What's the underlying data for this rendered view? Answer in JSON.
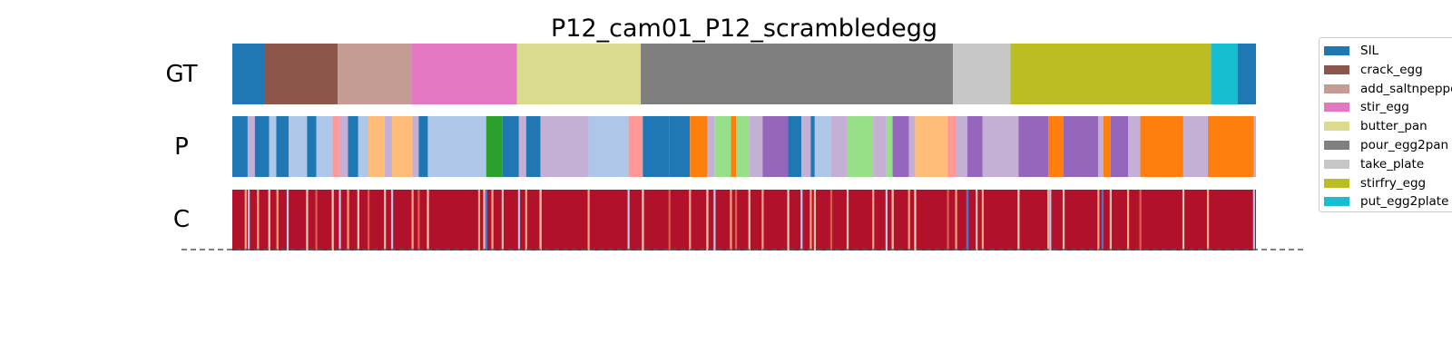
{
  "chart_data": {
    "type": "segmentation",
    "title": "P12_cam01_P12_scrambledegg",
    "rows": [
      "GT",
      "P",
      "C"
    ],
    "x_range": [
      0,
      1
    ],
    "legend": {
      "position": "right",
      "entries": [
        {
          "label": "SIL",
          "color": "#1f77b4"
        },
        {
          "label": "crack_egg",
          "color": "#8c564b"
        },
        {
          "label": "add_saltnpepper",
          "color": "#c49c94"
        },
        {
          "label": "stir_egg",
          "color": "#e377c2"
        },
        {
          "label": "butter_pan",
          "color": "#dbdb8d"
        },
        {
          "label": "pour_egg2pan",
          "color": "#7f7f7f"
        },
        {
          "label": "take_plate",
          "color": "#c7c7c7"
        },
        {
          "label": "stirfry_egg",
          "color": "#bcbd22"
        },
        {
          "label": "put_egg2plate",
          "color": "#17becf"
        }
      ]
    },
    "gt_segments": [
      {
        "start": 0.0,
        "end": 0.031,
        "color": "#1f77b4"
      },
      {
        "start": 0.031,
        "end": 0.103,
        "color": "#8c564b"
      },
      {
        "start": 0.103,
        "end": 0.175,
        "color": "#c49c94"
      },
      {
        "start": 0.175,
        "end": 0.278,
        "color": "#e377c2"
      },
      {
        "start": 0.278,
        "end": 0.399,
        "color": "#dbdb8d"
      },
      {
        "start": 0.399,
        "end": 0.704,
        "color": "#7f7f7f"
      },
      {
        "start": 0.704,
        "end": 0.76,
        "color": "#c7c7c7"
      },
      {
        "start": 0.76,
        "end": 0.956,
        "color": "#bcbd22"
      },
      {
        "start": 0.956,
        "end": 0.982,
        "color": "#17becf"
      },
      {
        "start": 0.982,
        "end": 1.0,
        "color": "#1f77b4"
      }
    ],
    "p_segments": [
      {
        "start": 0.0,
        "end": 0.015,
        "color": "#1f77b4"
      },
      {
        "start": 0.015,
        "end": 0.022,
        "color": "#c5b0d5"
      },
      {
        "start": 0.022,
        "end": 0.036,
        "color": "#1f77b4"
      },
      {
        "start": 0.036,
        "end": 0.043,
        "color": "#aec7e8"
      },
      {
        "start": 0.043,
        "end": 0.055,
        "color": "#1f77b4"
      },
      {
        "start": 0.055,
        "end": 0.073,
        "color": "#aec7e8"
      },
      {
        "start": 0.073,
        "end": 0.082,
        "color": "#1f77b4"
      },
      {
        "start": 0.082,
        "end": 0.098,
        "color": "#aec7e8"
      },
      {
        "start": 0.098,
        "end": 0.105,
        "color": "#ff9896"
      },
      {
        "start": 0.105,
        "end": 0.113,
        "color": "#c5b0d5"
      },
      {
        "start": 0.113,
        "end": 0.123,
        "color": "#1f77b4"
      },
      {
        "start": 0.123,
        "end": 0.133,
        "color": "#aec7e8"
      },
      {
        "start": 0.133,
        "end": 0.149,
        "color": "#ffbb78"
      },
      {
        "start": 0.149,
        "end": 0.156,
        "color": "#c5b0d5"
      },
      {
        "start": 0.156,
        "end": 0.176,
        "color": "#ffbb78"
      },
      {
        "start": 0.176,
        "end": 0.182,
        "color": "#c5b0d5"
      },
      {
        "start": 0.182,
        "end": 0.191,
        "color": "#1f77b4"
      },
      {
        "start": 0.191,
        "end": 0.248,
        "color": "#aec7e8"
      },
      {
        "start": 0.248,
        "end": 0.264,
        "color": "#2ca02c"
      },
      {
        "start": 0.264,
        "end": 0.28,
        "color": "#1f77b4"
      },
      {
        "start": 0.28,
        "end": 0.287,
        "color": "#c5b0d5"
      },
      {
        "start": 0.287,
        "end": 0.301,
        "color": "#1f77b4"
      },
      {
        "start": 0.301,
        "end": 0.348,
        "color": "#c5b0d5"
      },
      {
        "start": 0.348,
        "end": 0.387,
        "color": "#aec7e8"
      },
      {
        "start": 0.387,
        "end": 0.401,
        "color": "#ff9896"
      },
      {
        "start": 0.401,
        "end": 0.427,
        "color": "#1f77b4"
      },
      {
        "start": 0.427,
        "end": 0.447,
        "color": "#1f77b4"
      },
      {
        "start": 0.447,
        "end": 0.464,
        "color": "#ff7f0e"
      },
      {
        "start": 0.464,
        "end": 0.471,
        "color": "#c5b0d5"
      },
      {
        "start": 0.471,
        "end": 0.487,
        "color": "#98df8a"
      },
      {
        "start": 0.487,
        "end": 0.492,
        "color": "#ff7f0e"
      },
      {
        "start": 0.492,
        "end": 0.505,
        "color": "#98df8a"
      },
      {
        "start": 0.505,
        "end": 0.518,
        "color": "#c5b0d5"
      },
      {
        "start": 0.518,
        "end": 0.543,
        "color": "#9467bd"
      },
      {
        "start": 0.543,
        "end": 0.556,
        "color": "#1f77b4"
      },
      {
        "start": 0.556,
        "end": 0.565,
        "color": "#c5b0d5"
      },
      {
        "start": 0.565,
        "end": 0.569,
        "color": "#1f77b4"
      },
      {
        "start": 0.569,
        "end": 0.585,
        "color": "#aec7e8"
      },
      {
        "start": 0.585,
        "end": 0.601,
        "color": "#c5b0d5"
      },
      {
        "start": 0.601,
        "end": 0.626,
        "color": "#98df8a"
      },
      {
        "start": 0.626,
        "end": 0.639,
        "color": "#c5b0d5"
      },
      {
        "start": 0.639,
        "end": 0.645,
        "color": "#98df8a"
      },
      {
        "start": 0.645,
        "end": 0.661,
        "color": "#9467bd"
      },
      {
        "start": 0.661,
        "end": 0.667,
        "color": "#c5b0d5"
      },
      {
        "start": 0.667,
        "end": 0.699,
        "color": "#ffbb78"
      },
      {
        "start": 0.699,
        "end": 0.707,
        "color": "#ff9896"
      },
      {
        "start": 0.707,
        "end": 0.718,
        "color": "#c5b0d5"
      },
      {
        "start": 0.718,
        "end": 0.733,
        "color": "#9467bd"
      },
      {
        "start": 0.733,
        "end": 0.768,
        "color": "#c5b0d5"
      },
      {
        "start": 0.768,
        "end": 0.797,
        "color": "#9467bd"
      },
      {
        "start": 0.797,
        "end": 0.812,
        "color": "#ff7f0e"
      },
      {
        "start": 0.812,
        "end": 0.846,
        "color": "#9467bd"
      },
      {
        "start": 0.846,
        "end": 0.851,
        "color": "#c5b0d5"
      },
      {
        "start": 0.851,
        "end": 0.858,
        "color": "#ff7f0e"
      },
      {
        "start": 0.858,
        "end": 0.875,
        "color": "#9467bd"
      },
      {
        "start": 0.875,
        "end": 0.887,
        "color": "#c5b0d5"
      },
      {
        "start": 0.887,
        "end": 0.929,
        "color": "#ff7f0e"
      },
      {
        "start": 0.929,
        "end": 0.953,
        "color": "#c5b0d5"
      },
      {
        "start": 0.953,
        "end": 0.998,
        "color": "#ff7f0e"
      },
      {
        "start": 0.998,
        "end": 1.0,
        "color": "#c5b0d5"
      }
    ],
    "c_lines": [
      {
        "x": 0.013,
        "color": "#f4a582"
      },
      {
        "x": 0.016,
        "color": "#b2cbe9"
      },
      {
        "x": 0.025,
        "color": "#f4a582"
      },
      {
        "x": 0.036,
        "color": "#f7c9b2"
      },
      {
        "x": 0.044,
        "color": "#f4a582"
      },
      {
        "x": 0.054,
        "color": "#b2cbe9"
      },
      {
        "x": 0.073,
        "color": "#f7c9b2"
      },
      {
        "x": 0.082,
        "color": "#d6604d"
      },
      {
        "x": 0.098,
        "color": "#f7c9b2"
      },
      {
        "x": 0.105,
        "color": "#b2cbe9"
      },
      {
        "x": 0.113,
        "color": "#f4a582"
      },
      {
        "x": 0.123,
        "color": "#f7c9b2"
      },
      {
        "x": 0.133,
        "color": "#d6604d"
      },
      {
        "x": 0.149,
        "color": "#f7c9b2"
      },
      {
        "x": 0.156,
        "color": "#b2cbe9"
      },
      {
        "x": 0.176,
        "color": "#f4a582"
      },
      {
        "x": 0.182,
        "color": "#d6604d"
      },
      {
        "x": 0.191,
        "color": "#f7c9b2"
      },
      {
        "x": 0.241,
        "color": "#f4a582"
      },
      {
        "x": 0.246,
        "color": "#f7c9b2"
      },
      {
        "x": 0.248,
        "color": "#4575d6"
      },
      {
        "x": 0.254,
        "color": "#f4a582"
      },
      {
        "x": 0.264,
        "color": "#f7c9b2"
      },
      {
        "x": 0.28,
        "color": "#b2cbe9"
      },
      {
        "x": 0.287,
        "color": "#f4a582"
      },
      {
        "x": 0.301,
        "color": "#f7c9b2"
      },
      {
        "x": 0.348,
        "color": "#f4a582"
      },
      {
        "x": 0.387,
        "color": "#b2cbe9"
      },
      {
        "x": 0.401,
        "color": "#f7c9b2"
      },
      {
        "x": 0.427,
        "color": "#d6604d"
      },
      {
        "x": 0.447,
        "color": "#f4a582"
      },
      {
        "x": 0.464,
        "color": "#f7c9b2"
      },
      {
        "x": 0.471,
        "color": "#b2cbe9"
      },
      {
        "x": 0.487,
        "color": "#f4a582"
      },
      {
        "x": 0.492,
        "color": "#d6604d"
      },
      {
        "x": 0.505,
        "color": "#f7c9b2"
      },
      {
        "x": 0.518,
        "color": "#f4a582"
      },
      {
        "x": 0.543,
        "color": "#f7c9b2"
      },
      {
        "x": 0.556,
        "color": "#b2cbe9"
      },
      {
        "x": 0.565,
        "color": "#f4a582"
      },
      {
        "x": 0.569,
        "color": "#f7c9b2"
      },
      {
        "x": 0.585,
        "color": "#d6604d"
      },
      {
        "x": 0.601,
        "color": "#f7c9b2"
      },
      {
        "x": 0.626,
        "color": "#f4a582"
      },
      {
        "x": 0.639,
        "color": "#b2cbe9"
      },
      {
        "x": 0.645,
        "color": "#f7c9b2"
      },
      {
        "x": 0.661,
        "color": "#f4a582"
      },
      {
        "x": 0.667,
        "color": "#f7c9b2"
      },
      {
        "x": 0.699,
        "color": "#d6604d"
      },
      {
        "x": 0.707,
        "color": "#f4a582"
      },
      {
        "x": 0.718,
        "color": "#b2cbe9"
      },
      {
        "x": 0.727,
        "color": "#f7c9b2"
      },
      {
        "x": 0.718,
        "color": "#4575d6"
      },
      {
        "x": 0.733,
        "color": "#f4a582"
      },
      {
        "x": 0.768,
        "color": "#f7c9b2"
      },
      {
        "x": 0.797,
        "color": "#f4a582"
      },
      {
        "x": 0.799,
        "color": "#b2cbe9"
      },
      {
        "x": 0.812,
        "color": "#f7c9b2"
      },
      {
        "x": 0.846,
        "color": "#f4a582"
      },
      {
        "x": 0.85,
        "color": "#4575d6"
      },
      {
        "x": 0.858,
        "color": "#f7c9b2"
      },
      {
        "x": 0.875,
        "color": "#f4a582"
      },
      {
        "x": 0.887,
        "color": "#d6604d"
      },
      {
        "x": 0.929,
        "color": "#f7c9b2"
      },
      {
        "x": 0.953,
        "color": "#f4a582"
      },
      {
        "x": 0.998,
        "color": "#b2cbe9"
      }
    ]
  }
}
